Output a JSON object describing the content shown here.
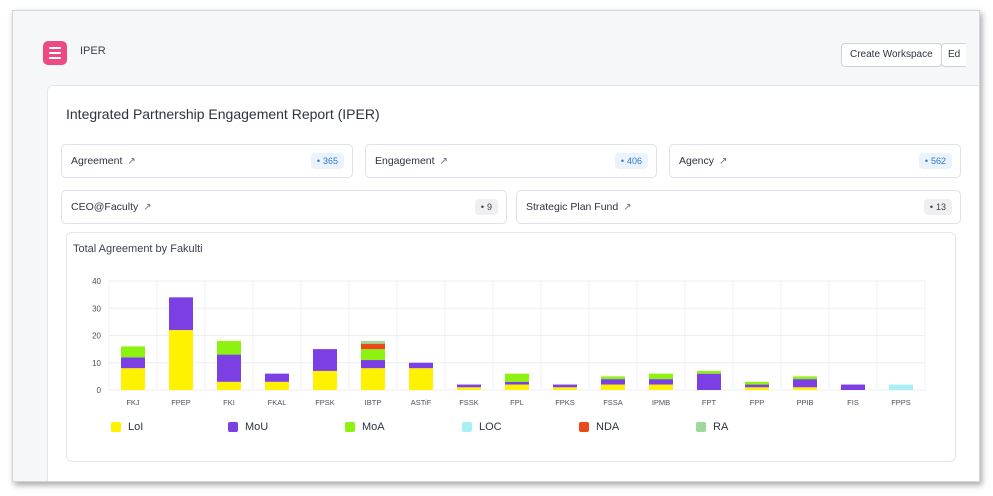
{
  "app": {
    "title": "IPER",
    "create_workspace_label": "Create Workspace",
    "edit_label": "Ed"
  },
  "report": {
    "title": "Integrated Partnership Engagement Report (IPER)",
    "cards": [
      {
        "label": "Agreement",
        "value": "365",
        "badge": "blue"
      },
      {
        "label": "Engagement",
        "value": "406",
        "badge": "blue"
      },
      {
        "label": "Agency",
        "value": "562",
        "badge": "blue"
      },
      {
        "label": "CEO@Faculty",
        "value": "9",
        "badge": "gray"
      },
      {
        "label": "Strategic Plan Fund",
        "value": "13",
        "badge": "gray"
      }
    ]
  },
  "chart_data": {
    "type": "bar",
    "stacked": true,
    "title": "Total Agreement by Fakulti",
    "xlabel": "",
    "ylabel": "",
    "ylim": [
      0,
      40
    ],
    "yticks": [
      0,
      10,
      20,
      30,
      40
    ],
    "grid": true,
    "legend_position": "bottom",
    "categories": [
      "FKJ",
      "FPEP",
      "FKI",
      "FKAL",
      "FPSK",
      "IBTP",
      "ASTiF",
      "FSSK",
      "FPL",
      "FPKS",
      "FSSA",
      "IPMB",
      "FPT",
      "FPP",
      "PPIB",
      "FIS",
      "FPPS"
    ],
    "series": [
      {
        "name": "LoI",
        "color": "#fff200",
        "values": [
          8,
          22,
          3,
          3,
          7,
          8,
          8,
          1,
          2,
          1,
          2,
          2,
          0,
          1,
          1,
          0,
          0
        ]
      },
      {
        "name": "MoU",
        "color": "#7b3fe4",
        "values": [
          4,
          12,
          10,
          3,
          8,
          3,
          2,
          1,
          1,
          1,
          2,
          2,
          6,
          1,
          3,
          2,
          0
        ]
      },
      {
        "name": "MoA",
        "color": "#8df20f",
        "values": [
          4,
          0,
          5,
          0,
          0,
          4,
          0,
          0,
          3,
          0,
          1,
          2,
          1,
          1,
          1,
          0,
          0
        ]
      },
      {
        "name": "LOC",
        "color": "#a8f0f5",
        "values": [
          0,
          0,
          0,
          0,
          0,
          0,
          0,
          0,
          0,
          0,
          0,
          0,
          0,
          0,
          0,
          0,
          2
        ]
      },
      {
        "name": "NDA",
        "color": "#e84a1c",
        "values": [
          0,
          0,
          0,
          0,
          0,
          2,
          0,
          0,
          0,
          0,
          0,
          0,
          0,
          0,
          0,
          0,
          0
        ]
      },
      {
        "name": "RA",
        "color": "#9ed89a",
        "values": [
          0,
          0,
          0,
          0,
          0,
          1,
          0,
          0,
          0,
          0,
          0,
          0,
          0,
          0,
          0,
          0,
          0
        ]
      }
    ]
  }
}
